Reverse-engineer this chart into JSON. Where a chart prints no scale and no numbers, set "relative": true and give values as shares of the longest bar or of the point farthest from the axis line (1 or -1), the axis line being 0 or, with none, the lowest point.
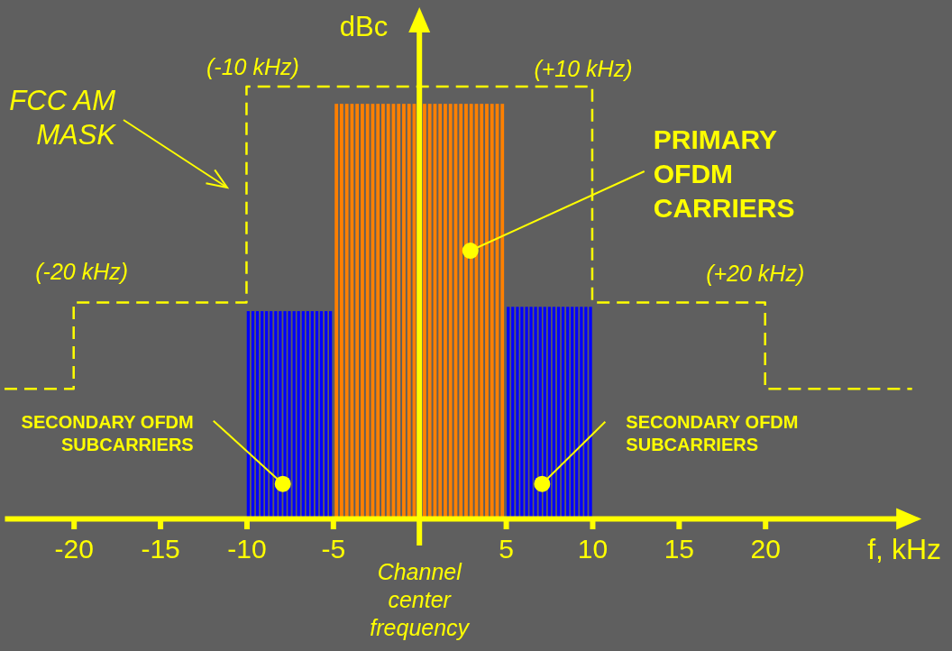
{
  "chart_data": {
    "type": "bar",
    "relative": true,
    "xlabel": "f, kHz",
    "ylabel": "dBc",
    "xlim": [
      -24,
      28.5
    ],
    "xticks": [
      -20,
      -15,
      -10,
      -5,
      5,
      10,
      15,
      20
    ],
    "series": [
      {
        "color": "#ff8000",
        "x": [
          -4.8,
          -4.5,
          -4.2,
          -3.9,
          -3.6,
          -3.3,
          -3,
          -2.7,
          -2.4,
          -2.1,
          -1.8,
          -1.5,
          -1.2,
          -0.9,
          -0.6,
          -0.3,
          0,
          0.3,
          0.6,
          0.9,
          1.2,
          1.5,
          1.8,
          2.1,
          2.4,
          2.7,
          3,
          3.3,
          3.6,
          3.9,
          4.2,
          4.5,
          4.8
        ],
        "values": [
          0.96,
          0.96,
          0.96,
          0.96,
          0.96,
          0.96,
          0.96,
          0.96,
          0.96,
          0.96,
          0.96,
          0.96,
          0.96,
          0.96,
          0.96,
          0.96,
          null,
          0.96,
          0.96,
          0.96,
          0.96,
          0.96,
          0.96,
          0.96,
          0.96,
          0.96,
          0.96,
          0.96,
          0.96,
          0.96,
          0.96,
          0.96,
          0.96
        ]
      },
      {
        "color": "#0000ff",
        "x": [
          -9.9,
          -9.63,
          -9.37,
          -9.1,
          -8.84,
          -8.58,
          -8.31,
          -8.05,
          -7.78,
          -7.52,
          -7.25,
          -6.99,
          -6.72,
          -6.46,
          -6.2,
          -5.93,
          -5.67,
          -5.4,
          -5.14,
          5.14,
          5.4,
          5.67,
          5.93,
          6.2,
          6.46,
          6.72,
          6.99,
          7.25,
          7.52,
          7.78,
          8.05,
          8.31,
          8.58,
          8.84,
          9.1,
          9.37,
          9.63,
          9.9
        ],
        "values": [
          0.48,
          0.48,
          0.48,
          0.48,
          0.48,
          0.48,
          0.48,
          0.48,
          0.48,
          0.48,
          0.48,
          0.48,
          0.48,
          0.48,
          0.48,
          0.48,
          0.48,
          0.48,
          0.48,
          0.49,
          0.49,
          0.49,
          0.49,
          0.49,
          0.49,
          0.49,
          0.49,
          0.49,
          0.49,
          0.49,
          0.49,
          0.49,
          0.49,
          0.49,
          0.49,
          0.49,
          0.49,
          0.49
        ]
      },
      {
        "type": "step",
        "color": "#ffff00",
        "line_style": "dashed",
        "x": [
          -24,
          -20,
          -10,
          10,
          20,
          28.5
        ],
        "values": [
          0.3,
          0.5,
          1,
          0.5,
          0.3,
          0.3
        ]
      }
    ],
    "ref_lines": [
      {
        "axis": "x",
        "value": 0,
        "label": "Channel center frequency",
        "color": "#ffff00"
      }
    ],
    "annotations": [
      {
        "text": "(-10 kHz)",
        "x": -10,
        "y": 1
      },
      {
        "text": "(+10 kHz)",
        "x": 10,
        "y": 1
      },
      "FCC AM MASK",
      {
        "text": "PRIMARY OFDM CARRIERS",
        "x": 2.95,
        "y": 0.62
      },
      {
        "text": "(-20 kHz)",
        "x": -20,
        "y": 0.5
      },
      {
        "text": "(+20 kHz)",
        "x": 20,
        "y": 0.5
      },
      {
        "text": "SECONDARY OFDM SUBCARRIERS",
        "x": -7.9,
        "y": 0.08
      },
      {
        "text": "SECONDARY OFDM SUBCARRIERS",
        "x": 7.1,
        "y": 0.08
      }
    ]
  }
}
